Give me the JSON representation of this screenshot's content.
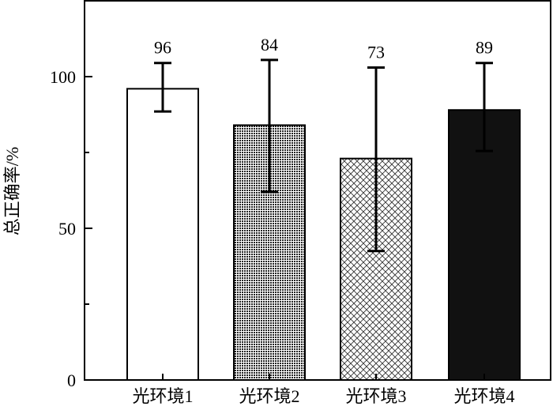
{
  "chart_data": {
    "type": "bar",
    "categories": [
      "光环境1",
      "光环境2",
      "光环境3",
      "光环境4"
    ],
    "values": [
      96,
      84,
      73,
      89
    ],
    "error_upper": [
      104.5,
      105.5,
      103,
      104.5
    ],
    "error_lower": [
      88.5,
      62,
      42.5,
      75.5
    ],
    "data_labels": [
      "96",
      "84",
      "73",
      "89"
    ],
    "patterns": [
      "solid-white",
      "fine-grid",
      "crosshatch",
      "solid-black"
    ],
    "title": "",
    "xlabel": "",
    "ylabel": "总正确率/%",
    "ylim": [
      0,
      125
    ],
    "yticks": [
      0,
      50,
      100
    ],
    "ytick_labels": [
      "0",
      "50",
      "100"
    ],
    "grid": false,
    "legend": "none",
    "colors": {
      "fill_dark": "#111111",
      "fill_light": "#ffffff",
      "axis": "#000000"
    }
  }
}
